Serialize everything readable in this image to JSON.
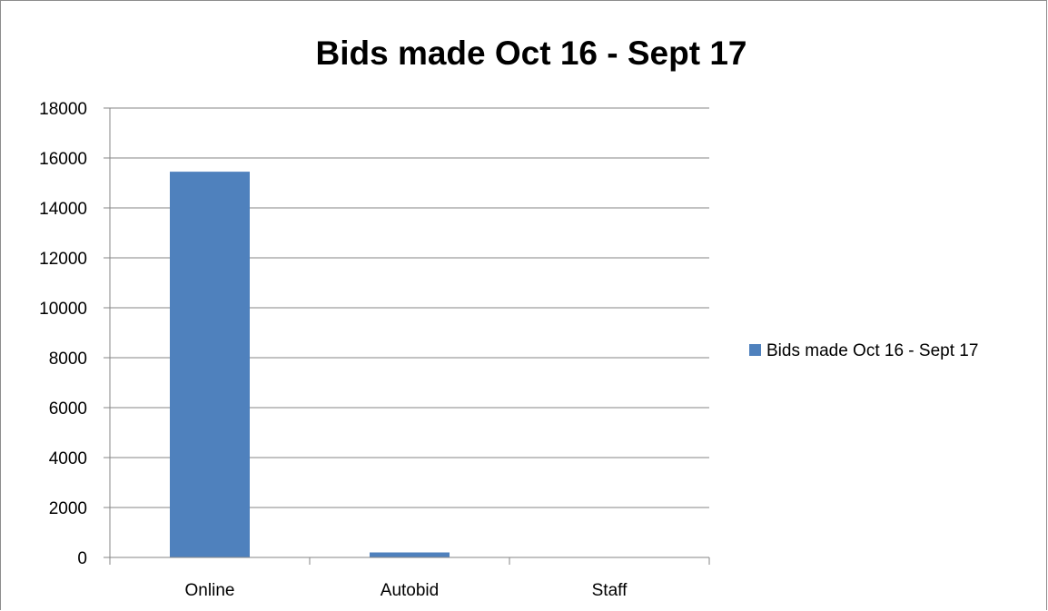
{
  "chart_data": {
    "type": "bar",
    "title": "Bids made Oct 16 - Sept 17",
    "xlabel": "",
    "ylabel": "",
    "categories": [
      "Online",
      "Autobid",
      "Staff"
    ],
    "series": [
      {
        "name": "Bids made Oct 16 - Sept 17",
        "values": [
          15450,
          200,
          5
        ],
        "color": "#4f81bd"
      }
    ],
    "ylim": [
      0,
      18000
    ],
    "yticks": [
      0,
      2000,
      4000,
      6000,
      8000,
      10000,
      12000,
      14000,
      16000,
      18000
    ],
    "grid": true,
    "legend": "right"
  }
}
